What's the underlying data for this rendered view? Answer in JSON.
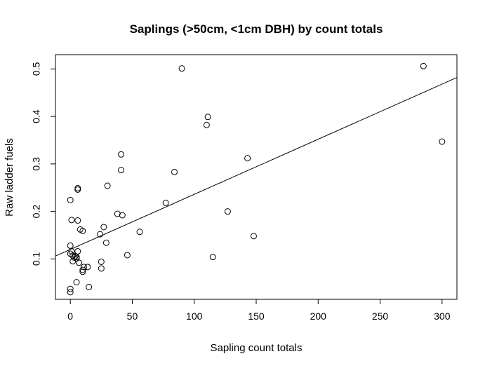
{
  "chart_data": {
    "type": "scatter",
    "title": "Saplings (>50cm, <1cm DBH) by count totals",
    "xlabel": "Sapling count totals",
    "ylabel": "Raw ladder fuels",
    "xlim": [
      -12,
      312
    ],
    "ylim": [
      0.015,
      0.53
    ],
    "xticks": [
      0,
      50,
      100,
      150,
      200,
      250,
      300
    ],
    "yticks": [
      0.1,
      0.2,
      0.3,
      0.4,
      0.5
    ],
    "grid": false,
    "legend": "none",
    "series": [
      {
        "marker": "open-circle",
        "color": "#000000",
        "points": [
          [
            0,
            0.03
          ],
          [
            0,
            0.037
          ],
          [
            0,
            0.128
          ],
          [
            0,
            0.111
          ],
          [
            0,
            0.224
          ],
          [
            1,
            0.182
          ],
          [
            1,
            0.116
          ],
          [
            2,
            0.107
          ],
          [
            2,
            0.095
          ],
          [
            3,
            0.103
          ],
          [
            4,
            0.106
          ],
          [
            5,
            0.101
          ],
          [
            5,
            0.104
          ],
          [
            5,
            0.051
          ],
          [
            6,
            0.116
          ],
          [
            6,
            0.246
          ],
          [
            6,
            0.249
          ],
          [
            6,
            0.181
          ],
          [
            7,
            0.092
          ],
          [
            8,
            0.162
          ],
          [
            10,
            0.159
          ],
          [
            10,
            0.073
          ],
          [
            10,
            0.077
          ],
          [
            11,
            0.083
          ],
          [
            14,
            0.083
          ],
          [
            15,
            0.041
          ],
          [
            24,
            0.152
          ],
          [
            25,
            0.094
          ],
          [
            25,
            0.08
          ],
          [
            27,
            0.167
          ],
          [
            29,
            0.134
          ],
          [
            30,
            0.254
          ],
          [
            38,
            0.195
          ],
          [
            41,
            0.32
          ],
          [
            41,
            0.287
          ],
          [
            42,
            0.192
          ],
          [
            46,
            0.108
          ],
          [
            56,
            0.157
          ],
          [
            77,
            0.218
          ],
          [
            84,
            0.283
          ],
          [
            90,
            0.501
          ],
          [
            110,
            0.382
          ],
          [
            111,
            0.399
          ],
          [
            115,
            0.104
          ],
          [
            127,
            0.2
          ],
          [
            143,
            0.312
          ],
          [
            148,
            0.148
          ],
          [
            285,
            0.506
          ],
          [
            300,
            0.347
          ]
        ]
      }
    ],
    "regression_line": {
      "intercept": 0.12,
      "slope": 0.00116
    }
  }
}
